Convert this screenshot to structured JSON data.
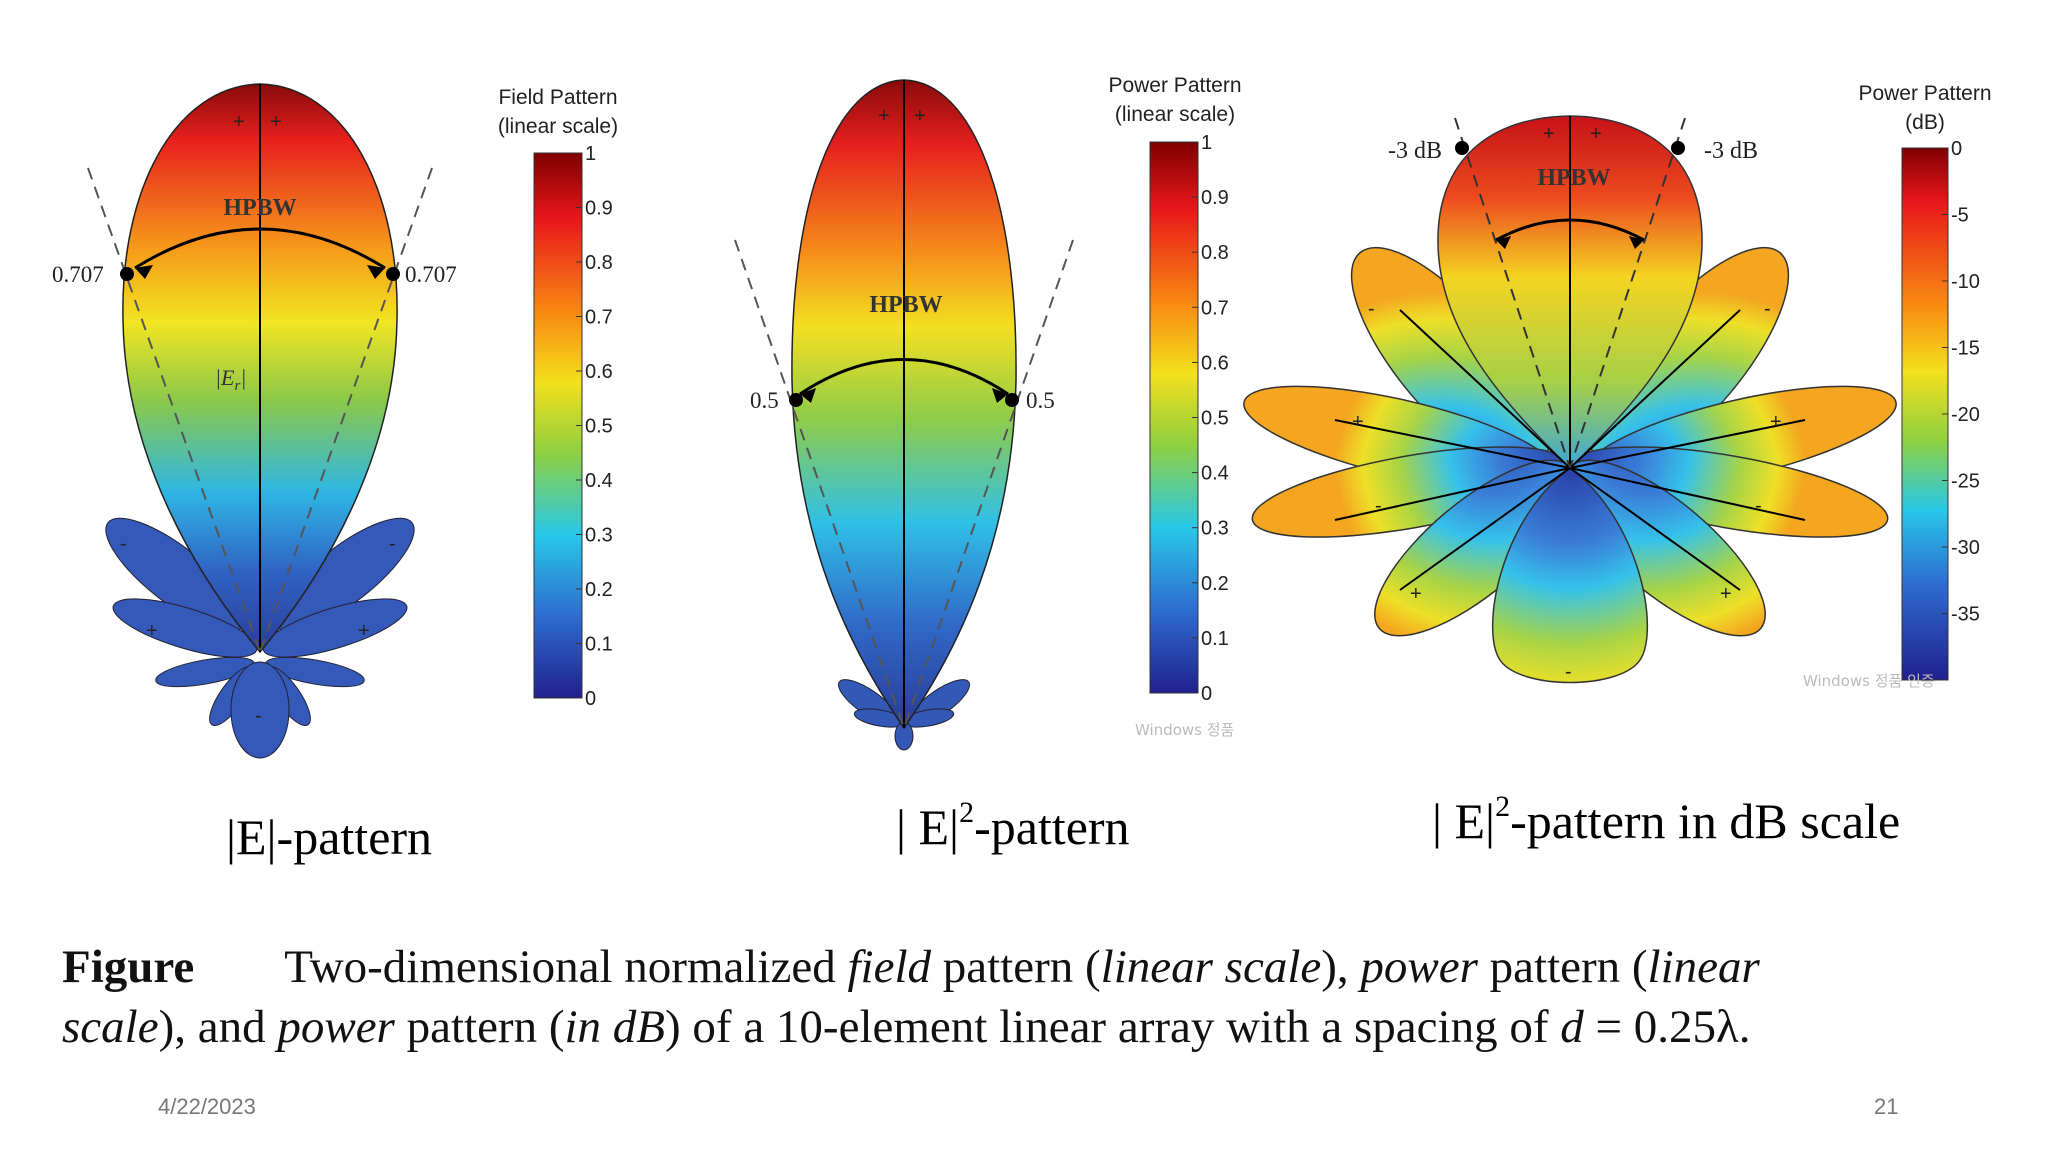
{
  "panels": [
    {
      "label_main": "|E|-pattern",
      "annotations": {
        "level_left": "0.707",
        "level_right": "0.707",
        "hpbw": "HPBW",
        "field_symbol": "|E",
        "field_subscript": "r",
        "field_close": "|"
      },
      "colorbar": {
        "title_line1": "Field Pattern",
        "title_line2": "(linear scale)",
        "ticks": [
          "1",
          "0.9",
          "0.8",
          "0.7",
          "0.6",
          "0.5",
          "0.4",
          "0.3",
          "0.2",
          "0.1",
          "0"
        ]
      },
      "lobe_signs": {
        "main": [
          "+",
          "+"
        ],
        "side_upper": [
          "-",
          "-"
        ],
        "side_mid": [
          "+",
          "+"
        ],
        "back": [
          "-"
        ]
      }
    },
    {
      "label_prefix": "| E|",
      "label_sup": "2",
      "label_suffix": "-pattern",
      "annotations": {
        "level_left": "0.5",
        "level_right": "0.5",
        "hpbw": "HPBW"
      },
      "colorbar": {
        "title_line1": "Power Pattern",
        "title_line2": "(linear scale)",
        "ticks": [
          "1",
          "0.9",
          "0.8",
          "0.7",
          "0.6",
          "0.5",
          "0.4",
          "0.3",
          "0.2",
          "0.1",
          "0"
        ]
      },
      "lobe_signs": {
        "main": [
          "+",
          "+"
        ]
      },
      "watermark": "Windows 정품"
    },
    {
      "label_prefix": "| E|",
      "label_sup": "2",
      "label_suffix": "-pattern in dB scale",
      "annotations": {
        "level_left": "-3 dB",
        "level_right": "-3 dB",
        "hpbw": "HPBW"
      },
      "colorbar": {
        "title_line1": "Power Pattern",
        "title_line2": "(dB)",
        "ticks": [
          "0",
          "-5",
          "-10",
          "-15",
          "-20",
          "-25",
          "-30",
          "-35"
        ]
      },
      "lobe_signs": {
        "main": [
          "+",
          "+"
        ],
        "s1": [
          "-",
          "-"
        ],
        "s2": [
          "+",
          "+"
        ],
        "s3": [
          "-",
          "-"
        ],
        "s4": [
          "+",
          "+"
        ],
        "back": [
          "-"
        ]
      },
      "watermark": "Windows 정품 인증"
    }
  ],
  "caption": {
    "label": "Figure",
    "line1_parts": [
      "Two-dimensional normalized ",
      "field",
      " pattern (",
      "linear scale",
      "), ",
      "power",
      " pattern (",
      "linear"
    ],
    "line2_parts": [
      "scale",
      "), and ",
      "power",
      " pattern (",
      "in dB",
      ") of a 10-element linear array with a spacing of ",
      "d",
      " = 0.25λ."
    ]
  },
  "footer": {
    "date": "4/22/2023",
    "page": "21"
  },
  "colors": {
    "jet_top": "#8b0000",
    "jet_bottom": "#1a1a8c"
  }
}
